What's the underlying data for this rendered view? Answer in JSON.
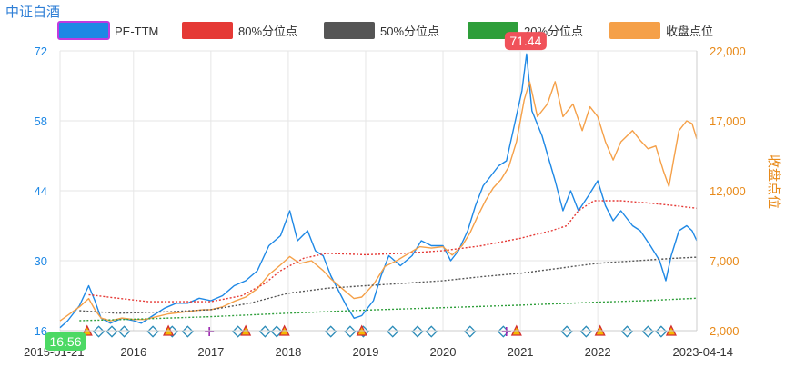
{
  "title": "中证白酒",
  "chart_data": {
    "type": "line",
    "title": "中证白酒",
    "ylabel_right": "收盘点位",
    "legend": [
      {
        "name": "PE-TTM",
        "color": "#1e88e5",
        "style": "solid"
      },
      {
        "name": "80%分位点",
        "color": "#e53935",
        "style": "dotted"
      },
      {
        "name": "50%分位点",
        "color": "#555555",
        "style": "dotted"
      },
      {
        "name": "20%分位点",
        "color": "#2e9e3a",
        "style": "dotted"
      },
      {
        "name": "收盘点位",
        "color": "#f5a048",
        "style": "solid"
      }
    ],
    "x_ticks": [
      "2015-01-21",
      "2016",
      "2017",
      "2018",
      "2019",
      "2020",
      "2021",
      "2022",
      "2023-04-14"
    ],
    "x_tick_t": [
      2015.05,
      2016.0,
      2017.0,
      2018.0,
      2019.0,
      2020.0,
      2021.0,
      2022.0,
      2023.28
    ],
    "x_range": [
      2015.05,
      2023.28
    ],
    "y_left": {
      "ticks": [
        16,
        30,
        44,
        58,
        72
      ],
      "ylim": [
        16,
        72
      ]
    },
    "y_right": {
      "ticks": [
        "2,000",
        "7,000",
        "12,000",
        "17,000",
        "22,000"
      ],
      "tick_values": [
        2000,
        7000,
        12000,
        17000,
        22000
      ],
      "ylim": [
        2000,
        22000
      ]
    },
    "min_label": "16.56",
    "max_label": "71.44",
    "series": [
      {
        "name": "PE-TTM",
        "color": "#1e88e5",
        "points": [
          [
            2015.05,
            16.6
          ],
          [
            2015.15,
            18
          ],
          [
            2015.3,
            21
          ],
          [
            2015.42,
            25
          ],
          [
            2015.5,
            22
          ],
          [
            2015.58,
            18.5
          ],
          [
            2015.7,
            17.5
          ],
          [
            2015.85,
            18.5
          ],
          [
            2016.0,
            18
          ],
          [
            2016.1,
            17.5
          ],
          [
            2016.25,
            19
          ],
          [
            2016.4,
            20.5
          ],
          [
            2016.55,
            21.5
          ],
          [
            2016.7,
            21.5
          ],
          [
            2016.85,
            22.5
          ],
          [
            2017.0,
            22
          ],
          [
            2017.15,
            23
          ],
          [
            2017.3,
            25
          ],
          [
            2017.45,
            26
          ],
          [
            2017.6,
            28
          ],
          [
            2017.75,
            33
          ],
          [
            2017.9,
            35
          ],
          [
            2018.02,
            40
          ],
          [
            2018.12,
            34
          ],
          [
            2018.25,
            36
          ],
          [
            2018.35,
            32
          ],
          [
            2018.45,
            31
          ],
          [
            2018.55,
            27
          ],
          [
            2018.65,
            24
          ],
          [
            2018.75,
            21
          ],
          [
            2018.85,
            18.5
          ],
          [
            2018.95,
            19
          ],
          [
            2019.1,
            22
          ],
          [
            2019.2,
            27
          ],
          [
            2019.3,
            31
          ],
          [
            2019.45,
            29
          ],
          [
            2019.6,
            31
          ],
          [
            2019.72,
            34
          ],
          [
            2019.85,
            33
          ],
          [
            2020.0,
            33
          ],
          [
            2020.1,
            30
          ],
          [
            2020.2,
            32
          ],
          [
            2020.32,
            36
          ],
          [
            2020.42,
            41
          ],
          [
            2020.52,
            45
          ],
          [
            2020.62,
            47
          ],
          [
            2020.72,
            49
          ],
          [
            2020.82,
            50
          ],
          [
            2020.92,
            57
          ],
          [
            2021.02,
            64
          ],
          [
            2021.08,
            71.4
          ],
          [
            2021.15,
            60
          ],
          [
            2021.28,
            55
          ],
          [
            2021.45,
            46
          ],
          [
            2021.55,
            40
          ],
          [
            2021.65,
            44
          ],
          [
            2021.75,
            40
          ],
          [
            2021.88,
            43
          ],
          [
            2022.0,
            46
          ],
          [
            2022.1,
            41
          ],
          [
            2022.2,
            38
          ],
          [
            2022.3,
            40
          ],
          [
            2022.45,
            37
          ],
          [
            2022.55,
            36
          ],
          [
            2022.68,
            33
          ],
          [
            2022.8,
            30
          ],
          [
            2022.88,
            26
          ],
          [
            2022.95,
            31
          ],
          [
            2023.05,
            36
          ],
          [
            2023.15,
            37
          ],
          [
            2023.22,
            36
          ],
          [
            2023.28,
            34
          ]
        ]
      },
      {
        "name": "收盘点位",
        "color": "#f5a048",
        "points": [
          [
            2015.05,
            2700
          ],
          [
            2015.15,
            3100
          ],
          [
            2015.3,
            3700
          ],
          [
            2015.42,
            4300
          ],
          [
            2015.5,
            3500
          ],
          [
            2015.58,
            2900
          ],
          [
            2015.7,
            2700
          ],
          [
            2015.85,
            2900
          ],
          [
            2016.0,
            2800
          ],
          [
            2016.15,
            2800
          ],
          [
            2016.3,
            3000
          ],
          [
            2016.45,
            3200
          ],
          [
            2016.6,
            3300
          ],
          [
            2016.75,
            3400
          ],
          [
            2016.9,
            3500
          ],
          [
            2017.0,
            3500
          ],
          [
            2017.15,
            3700
          ],
          [
            2017.3,
            4100
          ],
          [
            2017.45,
            4400
          ],
          [
            2017.6,
            5000
          ],
          [
            2017.75,
            6000
          ],
          [
            2017.9,
            6700
          ],
          [
            2018.02,
            7300
          ],
          [
            2018.15,
            6800
          ],
          [
            2018.3,
            7000
          ],
          [
            2018.45,
            6300
          ],
          [
            2018.55,
            5700
          ],
          [
            2018.7,
            5000
          ],
          [
            2018.85,
            4300
          ],
          [
            2018.95,
            4400
          ],
          [
            2019.1,
            5300
          ],
          [
            2019.25,
            6600
          ],
          [
            2019.4,
            7000
          ],
          [
            2019.55,
            7500
          ],
          [
            2019.7,
            8000
          ],
          [
            2019.85,
            7900
          ],
          [
            2020.0,
            8000
          ],
          [
            2020.12,
            7400
          ],
          [
            2020.25,
            8100
          ],
          [
            2020.35,
            9000
          ],
          [
            2020.45,
            10200
          ],
          [
            2020.55,
            11300
          ],
          [
            2020.65,
            12200
          ],
          [
            2020.75,
            12800
          ],
          [
            2020.85,
            13700
          ],
          [
            2020.95,
            15500
          ],
          [
            2021.05,
            18500
          ],
          [
            2021.12,
            19800
          ],
          [
            2021.22,
            17300
          ],
          [
            2021.35,
            18200
          ],
          [
            2021.45,
            19800
          ],
          [
            2021.55,
            17300
          ],
          [
            2021.68,
            18200
          ],
          [
            2021.8,
            16300
          ],
          [
            2021.9,
            18000
          ],
          [
            2022.0,
            17300
          ],
          [
            2022.1,
            15500
          ],
          [
            2022.2,
            14200
          ],
          [
            2022.3,
            15500
          ],
          [
            2022.45,
            16300
          ],
          [
            2022.55,
            15600
          ],
          [
            2022.65,
            15000
          ],
          [
            2022.75,
            15200
          ],
          [
            2022.85,
            13400
          ],
          [
            2022.92,
            12300
          ],
          [
            2022.98,
            14200
          ],
          [
            2023.05,
            16300
          ],
          [
            2023.15,
            17000
          ],
          [
            2023.22,
            16800
          ],
          [
            2023.28,
            15700
          ]
        ]
      },
      {
        "name": "80%分位点",
        "color": "#e53935",
        "points": [
          [
            2015.42,
            23.2
          ],
          [
            2015.8,
            22.5
          ],
          [
            2016.2,
            21.8
          ],
          [
            2016.6,
            21.8
          ],
          [
            2017.0,
            21.8
          ],
          [
            2017.4,
            23
          ],
          [
            2017.7,
            25.5
          ],
          [
            2017.9,
            28
          ],
          [
            2018.2,
            30.5
          ],
          [
            2018.5,
            31.5
          ],
          [
            2019.0,
            31.2
          ],
          [
            2019.5,
            31.5
          ],
          [
            2020.0,
            32
          ],
          [
            2020.5,
            33
          ],
          [
            2021.0,
            34.5
          ],
          [
            2021.4,
            36
          ],
          [
            2021.6,
            37
          ],
          [
            2021.75,
            40
          ],
          [
            2021.95,
            42
          ],
          [
            2022.3,
            42
          ],
          [
            2022.7,
            41.5
          ],
          [
            2023.0,
            41
          ],
          [
            2023.28,
            40.5
          ]
        ]
      },
      {
        "name": "50%分位点",
        "color": "#555555",
        "points": [
          [
            2015.3,
            20
          ],
          [
            2015.8,
            19.5
          ],
          [
            2016.5,
            19.8
          ],
          [
            2017.0,
            20.2
          ],
          [
            2017.5,
            21.5
          ],
          [
            2018.0,
            23.5
          ],
          [
            2018.5,
            24.5
          ],
          [
            2019.0,
            25
          ],
          [
            2019.5,
            25.5
          ],
          [
            2020.0,
            26
          ],
          [
            2020.5,
            26.8
          ],
          [
            2021.0,
            27.5
          ],
          [
            2021.5,
            28.5
          ],
          [
            2022.0,
            29.5
          ],
          [
            2022.5,
            30
          ],
          [
            2023.0,
            30.5
          ],
          [
            2023.28,
            30.7
          ]
        ]
      },
      {
        "name": "20%分位点",
        "color": "#2e9e3a",
        "points": [
          [
            2015.3,
            18
          ],
          [
            2016.0,
            18.3
          ],
          [
            2017.0,
            18.8
          ],
          [
            2018.0,
            19.5
          ],
          [
            2019.0,
            20.1
          ],
          [
            2020.0,
            20.6
          ],
          [
            2021.0,
            21.1
          ],
          [
            2022.0,
            21.7
          ],
          [
            2022.6,
            22
          ],
          [
            2023.28,
            22.5
          ]
        ]
      }
    ],
    "markers": {
      "diamond": [
        2015.55,
        2015.72,
        2015.88,
        2016.25,
        2016.5,
        2016.7,
        2017.35,
        2017.7,
        2017.85,
        2018.55,
        2018.8,
        2018.97,
        2019.35,
        2019.67,
        2019.85,
        2020.35,
        2020.78,
        2021.6,
        2021.85,
        2022.38,
        2022.65,
        2022.82
      ],
      "triangle": [
        2015.4,
        2016.45,
        2017.45,
        2017.95,
        2018.95,
        2020.95,
        2022.03,
        2022.95
      ],
      "plus": [
        2016.98,
        2020.82
      ]
    }
  }
}
